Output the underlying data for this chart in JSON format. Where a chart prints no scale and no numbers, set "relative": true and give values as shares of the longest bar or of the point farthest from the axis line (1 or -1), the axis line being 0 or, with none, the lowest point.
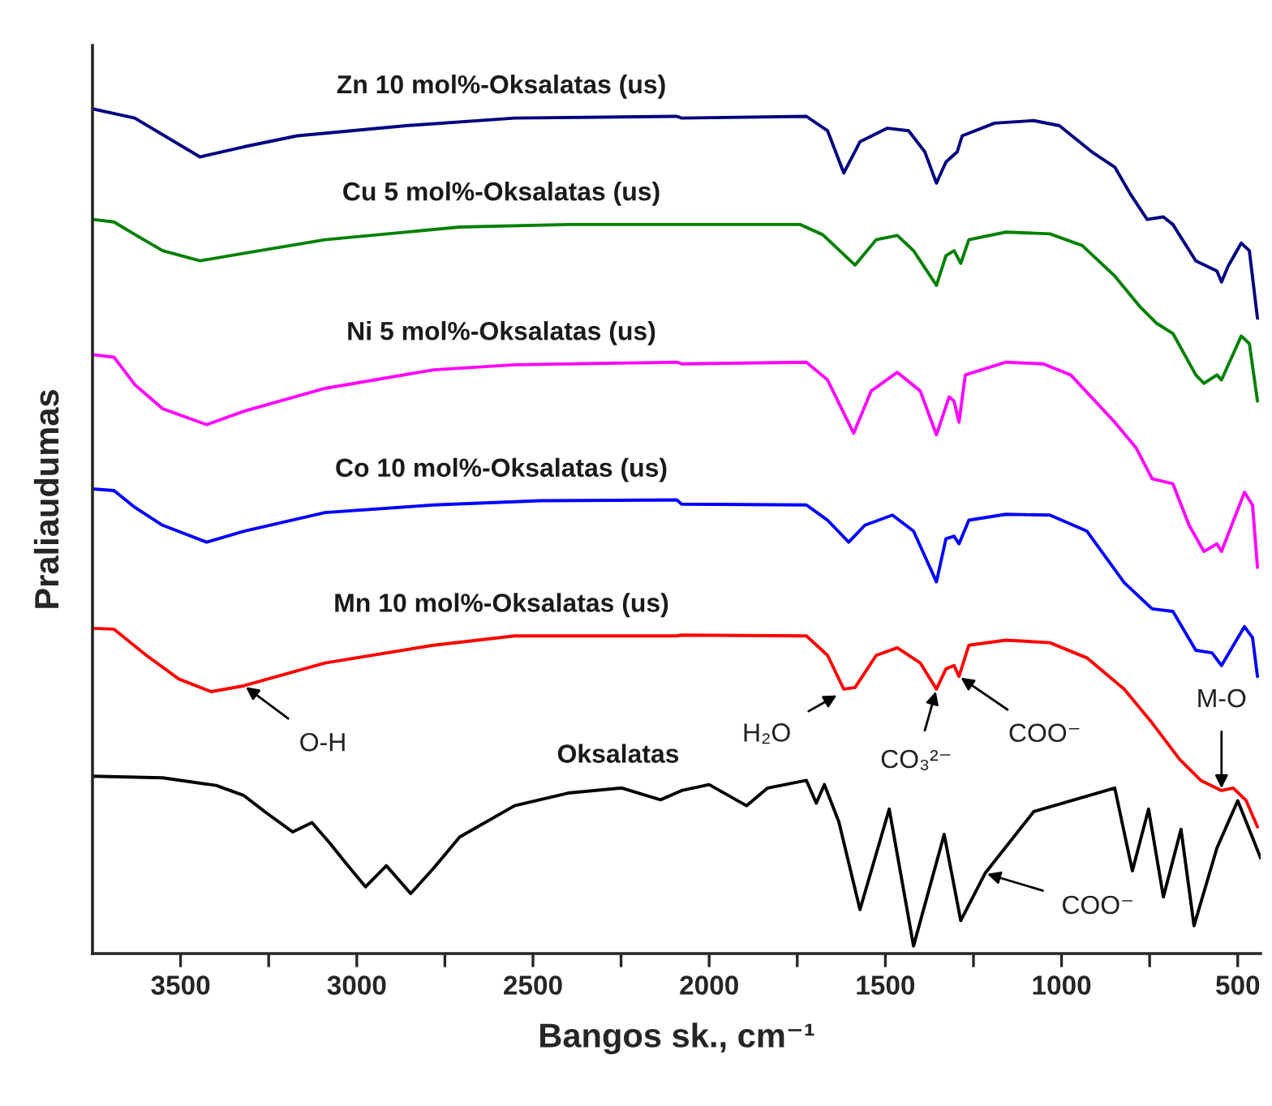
{
  "chart_data": {
    "type": "line",
    "relative": true,
    "xlabel": "Bangos sk., cm⁻¹",
    "ylabel": "Praliaudumas",
    "legend": false,
    "grid": false,
    "xlim": [
      3750,
      435
    ],
    "xticks": [
      3500,
      {
        "value": 3250,
        "label": null
      },
      3000,
      {
        "value": 2750,
        "label": null
      },
      2500,
      {
        "value": 2250,
        "label": null
      },
      2000,
      {
        "value": 1750,
        "label": null
      },
      1500,
      {
        "value": 1250,
        "label": null
      },
      1000,
      {
        "value": 750,
        "label": null
      },
      500
    ],
    "series": [
      {
        "name": "Zn 10 mol%-Oksalatas (us)",
        "color": "#000080",
        "x": [
          3750,
          3630,
          3445,
          3320,
          3169,
          2860,
          2552,
          2092,
          2078,
          1724,
          1664,
          1618,
          1572,
          1494,
          1434,
          1388,
          1355,
          1328,
          1296,
          1282,
          1190,
          1079,
          1006,
          914,
          849,
          803,
          757,
          711,
          684,
          619,
          559,
          546,
          527,
          490,
          467,
          444
        ],
        "values": [
          1.0,
          0.989,
          0.943,
          0.955,
          0.968,
          0.98,
          0.989,
          0.991,
          0.989,
          0.991,
          0.974,
          0.924,
          0.961,
          0.977,
          0.974,
          0.949,
          0.912,
          0.937,
          0.949,
          0.968,
          0.983,
          0.986,
          0.98,
          0.949,
          0.931,
          0.898,
          0.869,
          0.872,
          0.863,
          0.82,
          0.808,
          0.795,
          0.814,
          0.841,
          0.832,
          0.752
        ]
      },
      {
        "name": "Cu 5 mol%-Oksalatas (us)",
        "color": "#008000",
        "x": [
          3750,
          3689,
          3629,
          3551,
          3445,
          3320,
          3090,
          2708,
          2400,
          2092,
          2078,
          1742,
          1678,
          1586,
          1526,
          1466,
          1420,
          1355,
          1328,
          1305,
          1286,
          1263,
          1158,
          1033,
          941,
          849,
          776,
          730,
          684,
          619,
          596,
          559,
          546,
          490,
          467,
          444
        ],
        "values": [
          0.869,
          0.866,
          0.851,
          0.832,
          0.82,
          0.829,
          0.845,
          0.86,
          0.863,
          0.863,
          0.863,
          0.863,
          0.851,
          0.815,
          0.845,
          0.85,
          0.832,
          0.791,
          0.826,
          0.832,
          0.817,
          0.845,
          0.854,
          0.852,
          0.838,
          0.802,
          0.765,
          0.746,
          0.734,
          0.685,
          0.675,
          0.685,
          0.679,
          0.731,
          0.722,
          0.654
        ]
      },
      {
        "name": "Ni 5 mol%-Oksalatas (us)",
        "color": "#ff00ff",
        "x": [
          3750,
          3689,
          3629,
          3551,
          3426,
          3320,
          3090,
          2782,
          2552,
          2092,
          2078,
          1724,
          1664,
          1590,
          1540,
          1466,
          1401,
          1355,
          1319,
          1305,
          1291,
          1273,
          1158,
          1052,
          974,
          849,
          789,
          743,
          684,
          638,
          596,
          559,
          546,
          481,
          458,
          444
        ],
        "values": [
          0.709,
          0.706,
          0.673,
          0.645,
          0.626,
          0.642,
          0.669,
          0.691,
          0.697,
          0.7,
          0.698,
          0.7,
          0.679,
          0.616,
          0.666,
          0.688,
          0.666,
          0.614,
          0.659,
          0.654,
          0.629,
          0.685,
          0.7,
          0.698,
          0.685,
          0.629,
          0.599,
          0.562,
          0.556,
          0.507,
          0.476,
          0.485,
          0.476,
          0.546,
          0.531,
          0.457
        ]
      },
      {
        "name": "Co 10 mol%-Oksalatas (us)",
        "color": "#0000ff",
        "x": [
          3750,
          3689,
          3629,
          3551,
          3426,
          3320,
          3090,
          2782,
          2478,
          2092,
          2078,
          1724,
          1664,
          1604,
          1558,
          1480,
          1420,
          1355,
          1328,
          1305,
          1291,
          1263,
          1158,
          1033,
          928,
          822,
          743,
          684,
          619,
          573,
          546,
          481,
          458,
          444
        ],
        "values": [
          0.55,
          0.548,
          0.528,
          0.507,
          0.487,
          0.5,
          0.522,
          0.531,
          0.536,
          0.537,
          0.532,
          0.531,
          0.513,
          0.487,
          0.507,
          0.519,
          0.5,
          0.44,
          0.491,
          0.494,
          0.485,
          0.513,
          0.52,
          0.519,
          0.5,
          0.439,
          0.408,
          0.405,
          0.359,
          0.356,
          0.341,
          0.387,
          0.374,
          0.328
        ]
      },
      {
        "name": "Mn 10 mol%-Oksalatas (us)",
        "color": "#ff0000",
        "x": [
          3750,
          3689,
          3597,
          3505,
          3413,
          3320,
          3090,
          2782,
          2552,
          2092,
          2078,
          1724,
          1664,
          1618,
          1586,
          1526,
          1466,
          1401,
          1355,
          1328,
          1305,
          1291,
          1263,
          1158,
          1033,
          928,
          822,
          743,
          665,
          605,
          546,
          513,
          476,
          444
        ],
        "values": [
          0.385,
          0.384,
          0.353,
          0.325,
          0.31,
          0.317,
          0.344,
          0.365,
          0.376,
          0.376,
          0.377,
          0.376,
          0.353,
          0.313,
          0.315,
          0.353,
          0.362,
          0.344,
          0.313,
          0.337,
          0.341,
          0.328,
          0.365,
          0.371,
          0.368,
          0.35,
          0.313,
          0.273,
          0.23,
          0.205,
          0.193,
          0.196,
          0.181,
          0.15
        ]
      },
      {
        "name": "Oksalatas",
        "color": "#000000",
        "x": [
          3750,
          3551,
          3399,
          3320,
          3261,
          3182,
          3127,
          3077,
          3031,
          2975,
          2916,
          2847,
          2782,
          2708,
          2552,
          2400,
          2248,
          2138,
          2078,
          2000,
          1894,
          1834,
          1724,
          1696,
          1673,
          1632,
          1572,
          1489,
          1420,
          1333,
          1286,
          1217,
          1079,
          849,
          799,
          753,
          711,
          661,
          624,
          559,
          500,
          435
        ],
        "values": [
          0.21,
          0.208,
          0.199,
          0.187,
          0.168,
          0.144,
          0.155,
          0.131,
          0.107,
          0.079,
          0.104,
          0.071,
          0.101,
          0.138,
          0.175,
          0.19,
          0.196,
          0.182,
          0.193,
          0.2,
          0.175,
          0.196,
          0.205,
          0.178,
          0.2,
          0.156,
          0.052,
          0.171,
          0.009,
          0.141,
          0.039,
          0.095,
          0.168,
          0.196,
          0.098,
          0.171,
          0.067,
          0.147,
          0.033,
          0.125,
          0.181,
          0.113
        ]
      }
    ],
    "annotations": [
      {
        "text": "O-H",
        "x": 3320,
        "y": 0.317
      },
      {
        "text": "H₂O",
        "x": 1632,
        "y": 0.307
      },
      {
        "text": "CO₃²⁻",
        "x": 1355,
        "y": 0.313
      },
      {
        "text": "COO⁻",
        "x": 1291,
        "y": 0.328
      },
      {
        "text": "M-O",
        "x": 546,
        "y": 0.193
      },
      {
        "text": "COO⁻",
        "x": 1217,
        "y": 0.095
      }
    ]
  }
}
